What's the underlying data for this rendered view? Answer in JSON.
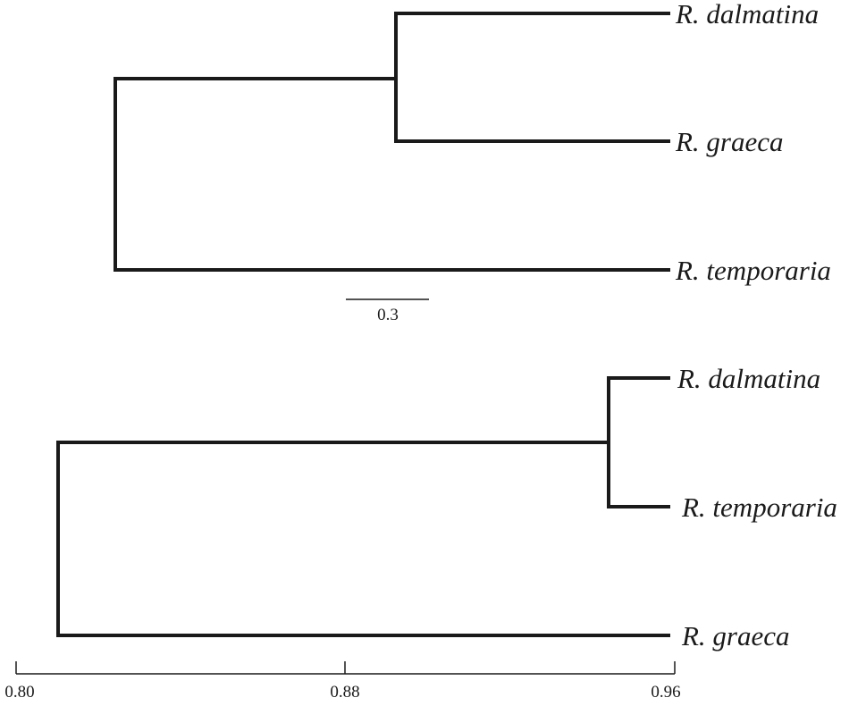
{
  "tree_top": {
    "taxa": [
      "R. dalmatina",
      "R. graeca",
      "R. temporaria"
    ],
    "scale_bar_label": "0.3"
  },
  "tree_bottom": {
    "taxa": [
      "R. dalmatina",
      "R. temporaria",
      "R. graeca"
    ],
    "axis_ticks": [
      "0.80",
      "0.88",
      "0.96"
    ]
  }
}
